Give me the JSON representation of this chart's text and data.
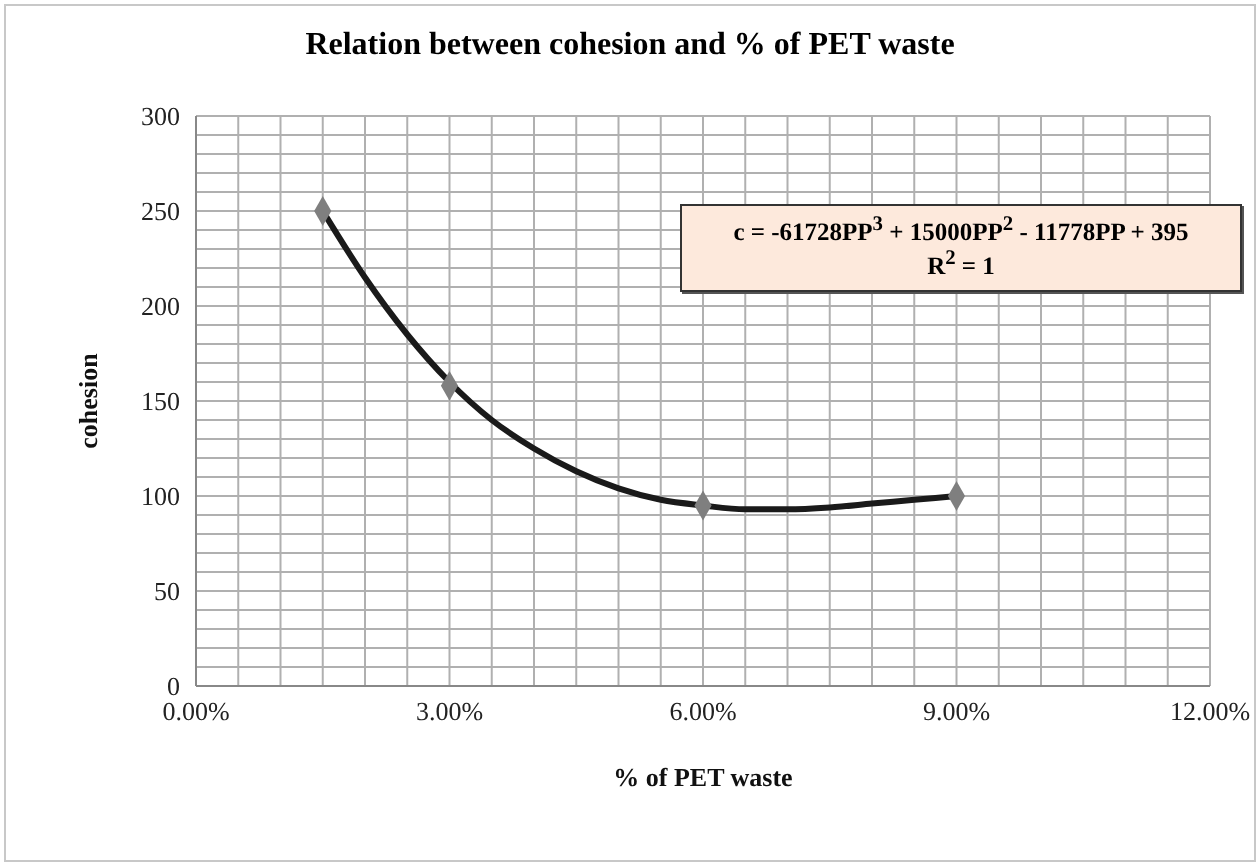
{
  "chart_data": {
    "type": "scatter",
    "title": "Relation between cohesion and % of PET waste",
    "xlabel": "% of PET waste",
    "ylabel": "cohesion",
    "series": [
      {
        "color": "#7f7f7f",
        "marker": "diamond",
        "x": [
          0.015,
          0.03,
          0.06,
          0.09
        ],
        "values": [
          250,
          158,
          95,
          100
        ]
      },
      {
        "type": "line",
        "color": "#1a1a1a",
        "marker": "none",
        "line_style": "solid",
        "x": [
          0.015,
          0.02,
          0.025,
          0.03,
          0.035,
          0.04,
          0.045,
          0.05,
          0.055,
          0.06,
          0.065,
          0.07,
          0.075,
          0.08,
          0.085,
          0.09
        ],
        "values": [
          250,
          215,
          185,
          160,
          140,
          125,
          113,
          104,
          98,
          95,
          93,
          93,
          94,
          96,
          98,
          100
        ]
      }
    ],
    "annotations": [
      "c = -61728PP$^{3}$ + 15000PP$^{2}$ - 11778PP + 395",
      "R$^{2}$ = 1"
    ],
    "xlim": [
      0,
      0.12
    ],
    "xticks": [
      {
        "value": 0,
        "label": "0.00%"
      },
      {
        "value": 0.005,
        "label": null
      },
      {
        "value": 0.01,
        "label": null
      },
      {
        "value": 0.015,
        "label": null
      },
      {
        "value": 0.02,
        "label": null
      },
      {
        "value": 0.025,
        "label": null
      },
      {
        "value": 0.03,
        "label": "3.00%"
      },
      {
        "value": 0.035,
        "label": null
      },
      {
        "value": 0.04,
        "label": null
      },
      {
        "value": 0.045,
        "label": null
      },
      {
        "value": 0.05,
        "label": null
      },
      {
        "value": 0.055,
        "label": null
      },
      {
        "value": 0.06,
        "label": "6.00%"
      },
      {
        "value": 0.065,
        "label": null
      },
      {
        "value": 0.07,
        "label": null
      },
      {
        "value": 0.075,
        "label": null
      },
      {
        "value": 0.08,
        "label": null
      },
      {
        "value": 0.085,
        "label": null
      },
      {
        "value": 0.09,
        "label": "9.00%"
      },
      {
        "value": 0.095,
        "label": null
      },
      {
        "value": 0.1,
        "label": null
      },
      {
        "value": 0.105,
        "label": null
      },
      {
        "value": 0.11,
        "label": null
      },
      {
        "value": 0.115,
        "label": null
      },
      {
        "value": 0.12,
        "label": "12.00%"
      }
    ],
    "ylim": [
      0,
      300
    ],
    "yticks": [
      0,
      {
        "value": 10,
        "label": null
      },
      {
        "value": 20,
        "label": null
      },
      {
        "value": 30,
        "label": null
      },
      {
        "value": 40,
        "label": null
      },
      50,
      {
        "value": 60,
        "label": null
      },
      {
        "value": 70,
        "label": null
      },
      {
        "value": 80,
        "label": null
      },
      {
        "value": 90,
        "label": null
      },
      100,
      {
        "value": 110,
        "label": null
      },
      {
        "value": 120,
        "label": null
      },
      {
        "value": 130,
        "label": null
      },
      {
        "value": 140,
        "label": null
      },
      150,
      {
        "value": 160,
        "label": null
      },
      {
        "value": 170,
        "label": null
      },
      {
        "value": 180,
        "label": null
      },
      {
        "value": 190,
        "label": null
      },
      200,
      {
        "value": 210,
        "label": null
      },
      {
        "value": 220,
        "label": null
      },
      {
        "value": 230,
        "label": null
      },
      {
        "value": 240,
        "label": null
      },
      250,
      {
        "value": 260,
        "label": null
      },
      {
        "value": 270,
        "label": null
      },
      {
        "value": 280,
        "label": null
      },
      {
        "value": 290,
        "label": null
      },
      300
    ],
    "grid": true,
    "legend": false
  }
}
